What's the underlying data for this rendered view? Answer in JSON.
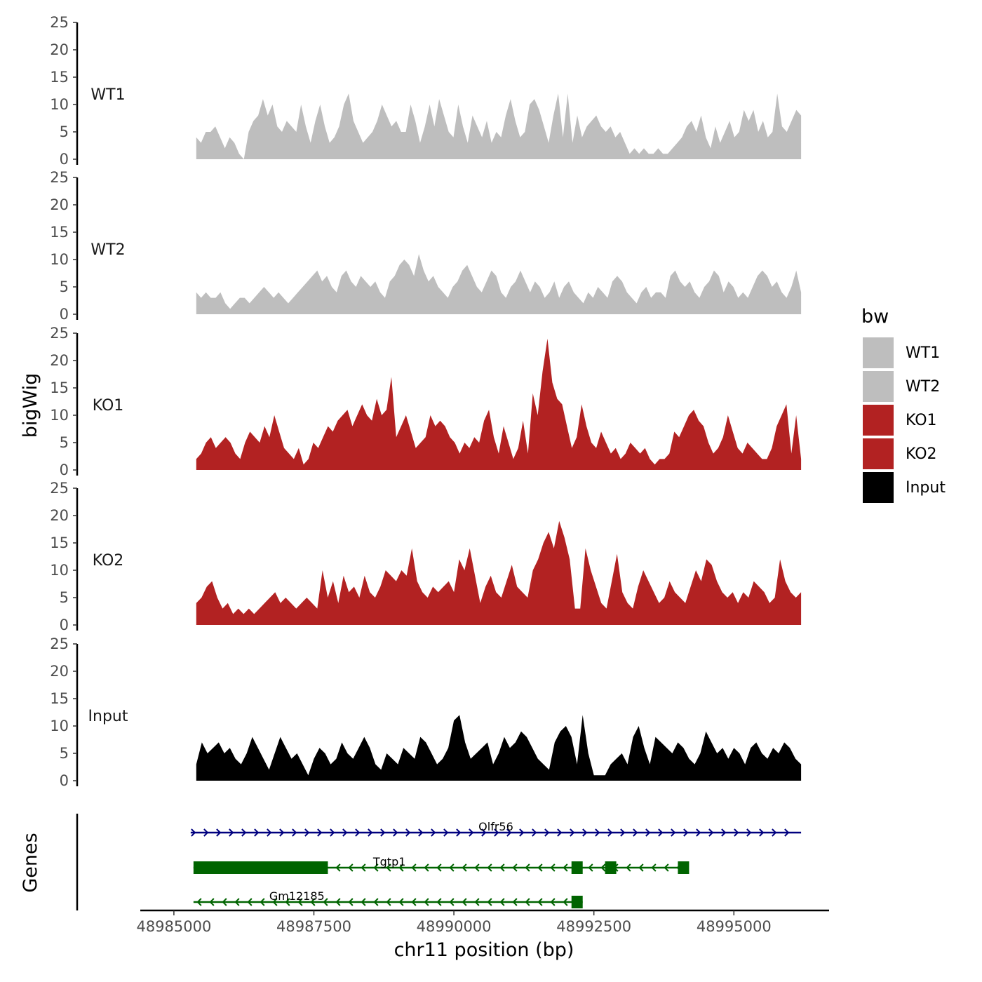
{
  "chart_data": {
    "type": "area",
    "ylabel": "bigWig",
    "xlabel": "chr11 position (bp)",
    "ylim": [
      0,
      25
    ],
    "y_ticks": [
      "0",
      "5",
      "10",
      "15",
      "20",
      "25"
    ],
    "xlim": [
      48984400,
      48996700
    ],
    "x_ticks": [
      48985000,
      48987500,
      48990000,
      48992500,
      48995000
    ],
    "x_tick_labels": [
      "48985000",
      "48987500",
      "48990000",
      "48992500",
      "48995000"
    ],
    "x_start": 48985400,
    "x_end": 48996200,
    "tracks": [
      {
        "name": "WT1",
        "color": "#bebebe",
        "values": [
          4,
          3,
          5,
          5,
          6,
          4,
          2,
          4,
          3,
          1,
          0,
          5,
          7,
          8,
          11,
          8,
          10,
          6,
          5,
          7,
          6,
          5,
          10,
          6,
          3,
          7,
          10,
          6,
          3,
          4,
          6,
          10,
          12,
          7,
          5,
          3,
          4,
          5,
          7,
          10,
          8,
          6,
          7,
          5,
          5,
          10,
          7,
          3,
          6,
          10,
          6,
          11,
          8,
          5,
          4,
          10,
          6,
          3,
          8,
          6,
          4,
          7,
          3,
          5,
          4,
          8,
          11,
          7,
          4,
          5,
          10,
          11,
          9,
          6,
          3,
          8,
          12,
          4,
          12,
          3,
          8,
          4,
          6,
          7,
          8,
          6,
          5,
          6,
          4,
          5,
          3,
          1,
          2,
          1,
          2,
          1,
          1,
          2,
          1,
          1,
          2,
          3,
          4,
          6,
          7,
          5,
          8,
          4,
          2,
          6,
          3,
          5,
          7,
          4,
          5,
          9,
          7,
          9,
          5,
          7,
          4,
          5,
          12,
          6,
          5,
          7,
          9,
          8
        ]
      },
      {
        "name": "WT2",
        "color": "#bebebe",
        "values": [
          4,
          3,
          4,
          3,
          3,
          4,
          2,
          1,
          2,
          3,
          3,
          2,
          3,
          4,
          5,
          4,
          3,
          4,
          3,
          2,
          3,
          4,
          5,
          6,
          7,
          8,
          6,
          7,
          5,
          4,
          7,
          8,
          6,
          5,
          7,
          6,
          5,
          6,
          4,
          3,
          6,
          7,
          9,
          10,
          9,
          7,
          11,
          8,
          6,
          7,
          5,
          4,
          3,
          5,
          6,
          8,
          9,
          7,
          5,
          4,
          6,
          8,
          7,
          4,
          3,
          5,
          6,
          8,
          6,
          4,
          6,
          5,
          3,
          4,
          6,
          3,
          5,
          6,
          4,
          3,
          2,
          4,
          3,
          5,
          4,
          3,
          6,
          7,
          6,
          4,
          3,
          2,
          4,
          5,
          3,
          4,
          4,
          3,
          7,
          8,
          6,
          5,
          6,
          4,
          3,
          5,
          6,
          8,
          7,
          4,
          6,
          5,
          3,
          4,
          3,
          5,
          7,
          8,
          7,
          5,
          6,
          4,
          3,
          5,
          8,
          4
        ]
      },
      {
        "name": "KO1",
        "color": "#b22222",
        "values": [
          2,
          3,
          5,
          6,
          4,
          5,
          6,
          5,
          3,
          2,
          5,
          7,
          6,
          5,
          8,
          6,
          10,
          7,
          4,
          3,
          2,
          4,
          1,
          2,
          5,
          4,
          6,
          8,
          7,
          9,
          10,
          11,
          8,
          10,
          12,
          10,
          9,
          13,
          10,
          11,
          17,
          6,
          8,
          10,
          7,
          4,
          5,
          6,
          10,
          8,
          9,
          8,
          6,
          5,
          3,
          5,
          4,
          6,
          5,
          9,
          11,
          6,
          3,
          8,
          5,
          2,
          4,
          9,
          3,
          14,
          10,
          18,
          24,
          16,
          13,
          12,
          8,
          4,
          6,
          12,
          8,
          5,
          4,
          7,
          5,
          3,
          4,
          2,
          3,
          5,
          4,
          3,
          4,
          2,
          1,
          2,
          2,
          3,
          7,
          6,
          8,
          10,
          11,
          9,
          8,
          5,
          3,
          4,
          6,
          10,
          7,
          4,
          3,
          5,
          4,
          3,
          2,
          2,
          4,
          8,
          10,
          12,
          3,
          10,
          2
        ]
      },
      {
        "name": "KO2",
        "color": "#b22222",
        "values": [
          4,
          5,
          7,
          8,
          5,
          3,
          4,
          2,
          3,
          2,
          3,
          2,
          3,
          4,
          5,
          6,
          4,
          5,
          4,
          3,
          4,
          5,
          4,
          3,
          10,
          5,
          8,
          4,
          9,
          6,
          7,
          5,
          9,
          6,
          5,
          7,
          10,
          9,
          8,
          10,
          9,
          14,
          8,
          6,
          5,
          7,
          6,
          7,
          8,
          6,
          12,
          10,
          14,
          9,
          4,
          7,
          9,
          6,
          5,
          8,
          11,
          7,
          6,
          5,
          10,
          12,
          15,
          17,
          14,
          19,
          16,
          12,
          3,
          3,
          14,
          10,
          7,
          4,
          3,
          8,
          13,
          6,
          4,
          3,
          7,
          10,
          8,
          6,
          4,
          5,
          8,
          6,
          5,
          4,
          7,
          10,
          8,
          12,
          11,
          8,
          6,
          5,
          6,
          4,
          6,
          5,
          8,
          7,
          6,
          4,
          5,
          12,
          8,
          6,
          5,
          6
        ]
      },
      {
        "name": "Input",
        "color": "#000000",
        "values": [
          3,
          7,
          5,
          6,
          7,
          5,
          6,
          4,
          3,
          5,
          8,
          6,
          4,
          2,
          5,
          8,
          6,
          4,
          5,
          3,
          1,
          4,
          6,
          5,
          3,
          4,
          7,
          5,
          4,
          6,
          8,
          6,
          3,
          2,
          5,
          4,
          3,
          6,
          5,
          4,
          8,
          7,
          5,
          3,
          4,
          6,
          11,
          12,
          7,
          4,
          5,
          6,
          7,
          3,
          5,
          8,
          6,
          7,
          9,
          8,
          6,
          4,
          3,
          2,
          7,
          9,
          10,
          8,
          3,
          12,
          5,
          1,
          1,
          1,
          3,
          4,
          5,
          3,
          8,
          10,
          6,
          3,
          8,
          7,
          6,
          5,
          7,
          6,
          4,
          3,
          5,
          9,
          7,
          5,
          6,
          4,
          6,
          5,
          3,
          6,
          7,
          5,
          4,
          6,
          5,
          7,
          6,
          4,
          3
        ]
      }
    ],
    "legend": {
      "title": "bw",
      "entries": [
        {
          "label": "WT1",
          "color": "#bebebe"
        },
        {
          "label": "WT2",
          "color": "#bebebe"
        },
        {
          "label": "KO1",
          "color": "#b22222"
        },
        {
          "label": "KO2",
          "color": "#b22222"
        },
        {
          "label": "Input",
          "color": "#000000"
        }
      ]
    },
    "genes_label": "Genes",
    "genes": [
      {
        "name": "Olfr56",
        "color": "#00007f",
        "strand": "+",
        "start": 48985300,
        "end": 48996200,
        "exons": []
      },
      {
        "name": "Tgtp1",
        "color": "#006400",
        "strand": "-",
        "start": 48985350,
        "end": 48994100,
        "exons": [
          [
            48985350,
            48987750
          ],
          [
            48992100,
            48992300
          ],
          [
            48992700,
            48992900
          ],
          [
            48994000,
            48994200
          ]
        ]
      },
      {
        "name": "Gm12185",
        "color": "#006400",
        "strand": "-",
        "start": 48985350,
        "end": 48992300,
        "exons": [
          [
            48992100,
            48992300
          ]
        ]
      }
    ]
  }
}
